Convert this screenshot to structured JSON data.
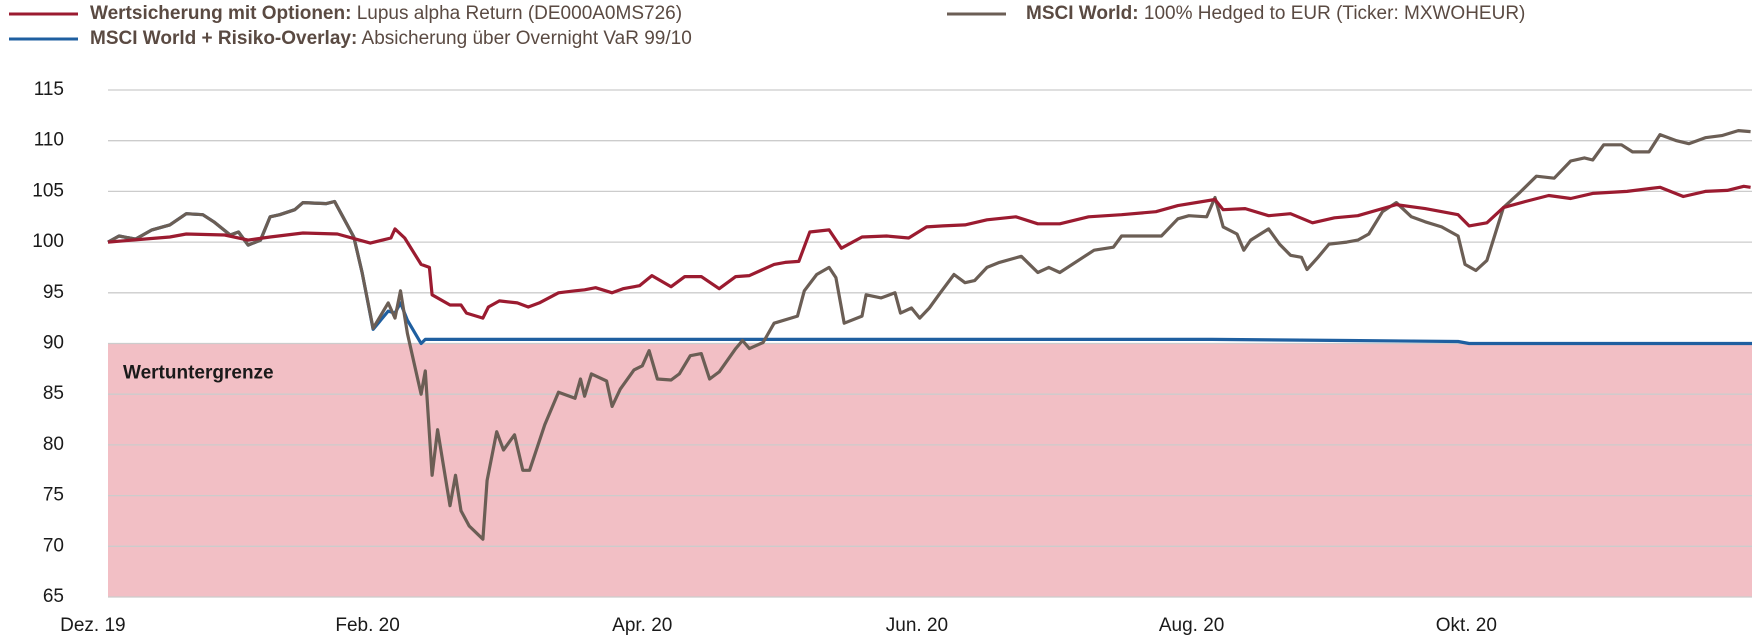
{
  "chart_data": {
    "type": "line",
    "xlim": [
      0.11,
      12.08
    ],
    "xticks": [
      {
        "value": 0,
        "label": "Dez. 19"
      },
      {
        "value": 2,
        "label": "Feb. 20"
      },
      {
        "value": 4,
        "label": "Apr. 20"
      },
      {
        "value": 6,
        "label": "Jun. 20"
      },
      {
        "value": 8,
        "label": "Aug. 20"
      },
      {
        "value": 10,
        "label": "Okt. 20"
      }
    ],
    "ylim": [
      65,
      115
    ],
    "yticks": [
      65,
      70,
      75,
      80,
      85,
      90,
      95,
      100,
      105,
      110,
      115
    ],
    "grid": true,
    "floor": 90,
    "floor_color": "#f2bfc5",
    "annotation": "Wertuntergrenze",
    "series": [
      {
        "name": "Wertsicherung mit Optionen:",
        "description": "Lupus alpha Return (DE000A0MS726)",
        "color": "#9b1b30",
        "x": [
          0.11,
          0.56,
          0.68,
          0.96,
          1.13,
          1.29,
          1.53,
          1.78,
          1.94,
          2.02,
          2.17,
          2.2,
          2.27,
          2.39,
          2.45,
          2.47,
          2.6,
          2.68,
          2.72,
          2.84,
          2.88,
          2.96,
          3.09,
          3.17,
          3.25,
          3.39,
          3.51,
          3.58,
          3.66,
          3.78,
          3.86,
          3.98,
          4.07,
          4.21,
          4.31,
          4.43,
          4.56,
          4.68,
          4.78,
          4.96,
          5.04,
          5.14,
          5.22,
          5.36,
          5.45,
          5.6,
          5.78,
          5.94,
          6.07,
          6.19,
          6.35,
          6.51,
          6.72,
          6.88,
          7.04,
          7.25,
          7.49,
          7.74,
          7.9,
          8.17,
          8.23,
          8.39,
          8.56,
          8.72,
          8.88,
          9.04,
          9.21,
          9.49,
          9.7,
          9.94,
          10.02,
          10.15,
          10.27,
          10.43,
          10.6,
          10.76,
          10.92,
          11.17,
          11.41,
          11.58,
          11.74,
          11.9,
          12.02,
          12.07
        ],
        "values": [
          100,
          100.5,
          100.8,
          100.7,
          100.2,
          100.5,
          100.9,
          100.8,
          100.2,
          99.9,
          100.4,
          101.3,
          100.4,
          97.8,
          97.5,
          94.8,
          93.8,
          93.8,
          93,
          92.5,
          93.6,
          94.2,
          94,
          93.6,
          94,
          95,
          95.2,
          95.3,
          95.5,
          95,
          95.4,
          95.7,
          96.7,
          95.6,
          96.6,
          96.6,
          95.4,
          96.6,
          96.7,
          97.8,
          98,
          98.1,
          101,
          101.2,
          99.4,
          100.5,
          100.6,
          100.4,
          101.5,
          101.6,
          101.7,
          102.2,
          102.5,
          101.8,
          101.8,
          102.5,
          102.7,
          103,
          103.6,
          104.2,
          103.2,
          103.3,
          102.6,
          102.8,
          101.9,
          102.4,
          102.6,
          103.7,
          103.3,
          102.7,
          101.6,
          101.9,
          103.4,
          104,
          104.6,
          104.3,
          104.8,
          105,
          105.4,
          104.5,
          105,
          105.1,
          105.5,
          105.4
        ]
      },
      {
        "name": "MSCI World:",
        "description": "100% Hedged to EUR (Ticker: MXWOHEUR)",
        "color": "#6b5e55",
        "x": [
          0.11,
          0.19,
          0.31,
          0.43,
          0.56,
          0.68,
          0.8,
          0.88,
          1.0,
          1.06,
          1.13,
          1.22,
          1.29,
          1.36,
          1.47,
          1.53,
          1.7,
          1.76,
          1.82,
          1.9,
          1.96,
          2.04,
          2.15,
          2.2,
          2.24,
          2.29,
          2.39,
          2.42,
          2.47,
          2.51,
          2.6,
          2.64,
          2.68,
          2.74,
          2.84,
          2.87,
          2.94,
          2.99,
          3.07,
          3.13,
          3.18,
          3.29,
          3.39,
          3.51,
          3.55,
          3.58,
          3.63,
          3.74,
          3.78,
          3.84,
          3.94,
          4.0,
          4.05,
          4.11,
          4.21,
          4.27,
          4.35,
          4.43,
          4.49,
          4.56,
          4.68,
          4.73,
          4.78,
          4.88,
          4.96,
          5.13,
          5.18,
          5.27,
          5.36,
          5.41,
          5.47,
          5.6,
          5.63,
          5.74,
          5.84,
          5.88,
          5.96,
          6.02,
          6.09,
          6.17,
          6.27,
          6.35,
          6.42,
          6.51,
          6.6,
          6.76,
          6.88,
          6.96,
          7.04,
          7.21,
          7.29,
          7.43,
          7.49,
          7.66,
          7.78,
          7.9,
          7.98,
          8.11,
          8.17,
          8.23,
          8.33,
          8.38,
          8.43,
          8.56,
          8.64,
          8.72,
          8.8,
          8.84,
          8.92,
          9.0,
          9.13,
          9.21,
          9.29,
          9.39,
          9.49,
          9.6,
          9.7,
          9.82,
          9.94,
          9.99,
          10.07,
          10.15,
          10.27,
          10.39,
          10.51,
          10.64,
          10.76,
          10.86,
          10.92,
          11.0,
          11.13,
          11.21,
          11.33,
          11.41,
          11.53,
          11.62,
          11.74,
          11.86,
          11.98,
          12.07
        ],
        "values": [
          100,
          100.6,
          100.3,
          101.2,
          101.7,
          102.8,
          102.7,
          102.0,
          100.7,
          101.0,
          99.7,
          100.2,
          102.5,
          102.7,
          103.2,
          103.9,
          103.8,
          104.0,
          102.5,
          100.5,
          97,
          91.5,
          94,
          92.5,
          95.2,
          91,
          85,
          87.3,
          77,
          81.5,
          74,
          77,
          73.5,
          72,
          70.7,
          76.5,
          81.3,
          79.5,
          81,
          77.5,
          77.5,
          82,
          85.2,
          84.6,
          86.5,
          84.8,
          87,
          86.3,
          83.8,
          85.5,
          87.4,
          87.8,
          89.3,
          86.5,
          86.4,
          87,
          88.8,
          89,
          86.5,
          87.2,
          89.5,
          90.3,
          89.5,
          90.1,
          92,
          92.7,
          95.2,
          96.8,
          97.5,
          96.5,
          92,
          92.7,
          94.8,
          94.5,
          95,
          93,
          93.5,
          92.5,
          93.5,
          95,
          96.8,
          96,
          96.2,
          97.5,
          98,
          98.6,
          97,
          97.5,
          97,
          98.5,
          99.2,
          99.5,
          100.6,
          100.6,
          100.6,
          102.3,
          102.6,
          102.5,
          104.4,
          101.5,
          100.8,
          99.2,
          100.2,
          101.3,
          99.8,
          98.7,
          98.5,
          97.3,
          98.5,
          99.8,
          100,
          100.2,
          100.8,
          103,
          103.9,
          102.5,
          102,
          101.5,
          100.6,
          97.8,
          97.2,
          98.2,
          103.4,
          104.9,
          106.5,
          106.3,
          108,
          108.3,
          108.1,
          109.6,
          109.6,
          108.9,
          108.9,
          110.6,
          110,
          109.7,
          110.3,
          110.5,
          111,
          110.9
        ]
      },
      {
        "name": "MSCI World + Risiko-Overlay:",
        "description": "Absicherung über Overnight VaR 99/10",
        "color": "#1f5fa0",
        "x": [
          0.11,
          0.19,
          0.31,
          0.43,
          0.56,
          0.68,
          0.8,
          0.88,
          1.0,
          1.06,
          1.13,
          1.22,
          1.29,
          1.36,
          1.47,
          1.53,
          1.7,
          1.76,
          1.82,
          1.9,
          1.96,
          2.04,
          2.15,
          2.2,
          2.24,
          2.29,
          2.39,
          2.42,
          4.23,
          8.15,
          9.13,
          9.94,
          10.02,
          12.08
        ],
        "values": [
          100,
          100.6,
          100.3,
          101.2,
          101.7,
          102.8,
          102.7,
          102.0,
          100.7,
          101.0,
          99.7,
          100.2,
          102.5,
          102.7,
          103.2,
          103.9,
          103.8,
          104.0,
          102.5,
          100.5,
          97,
          91.4,
          93.2,
          93,
          94.0,
          92.3,
          90,
          90.4,
          90.4,
          90.4,
          90.3,
          90.2,
          90.0,
          90.0
        ]
      }
    ]
  }
}
